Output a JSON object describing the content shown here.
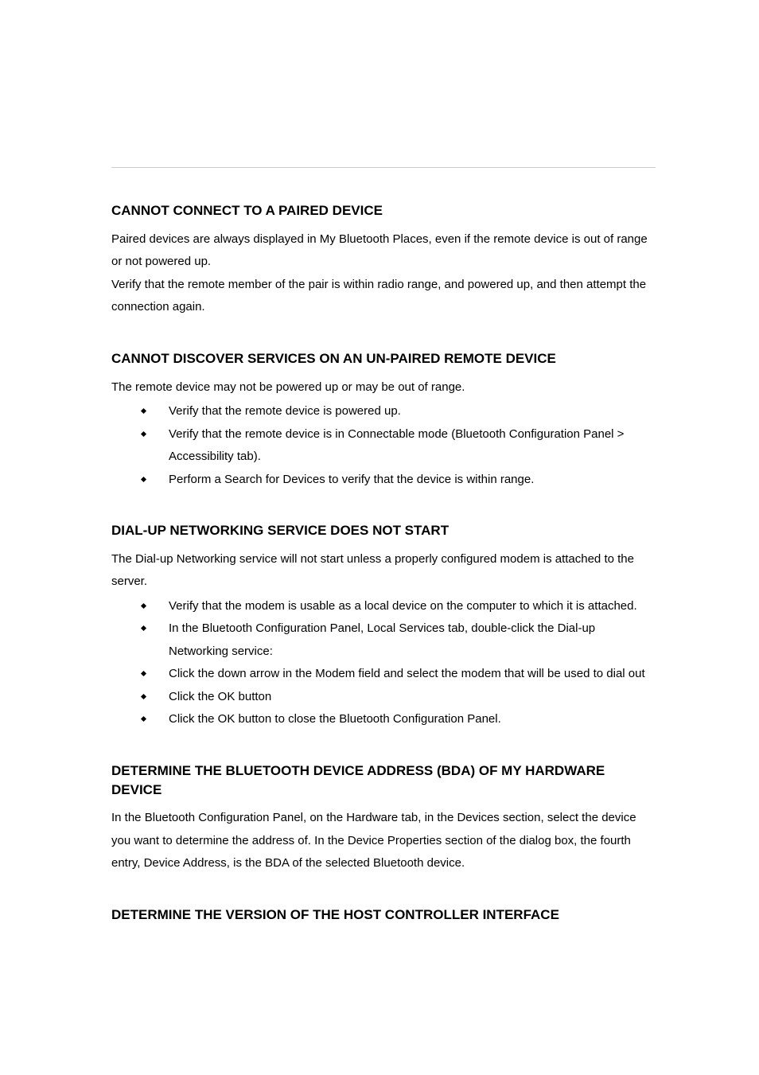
{
  "sections": [
    {
      "heading": "CANNOT CONNECT TO A PAIRED DEVICE",
      "paras": [
        "Paired devices are always displayed in My Bluetooth Places, even if the remote device is out of range or not powered up.",
        "Verify that the remote member of the pair is within radio range, and powered up, and then attempt the connection again."
      ],
      "bullets": []
    },
    {
      "heading": "CANNOT DISCOVER SERVICES ON AN UN-PAIRED REMOTE DEVICE",
      "paras": [
        "The remote device may not be powered up or may be out of range."
      ],
      "bullets": [
        "Verify that the remote device is powered up.",
        "Verify that the remote device is in Connectable mode (Bluetooth Configuration Panel > Accessibility tab).",
        "Perform a Search for Devices to verify that the device is within range."
      ]
    },
    {
      "heading": "DIAL-UP NETWORKING SERVICE DOES NOT START",
      "paras": [
        "The Dial-up Networking service will not start unless a properly configured modem is attached to the server."
      ],
      "bullets": [
        "Verify that the modem is usable as a local device on the computer to which it is attached.",
        "In the Bluetooth Configuration Panel, Local Services tab, double-click the Dial-up Networking service:",
        "Click the down arrow in the Modem field and select the modem that will be used to dial out",
        "Click the OK button",
        "Click the OK button to close the Bluetooth Configuration Panel."
      ]
    },
    {
      "heading": "DETERMINE THE BLUETOOTH DEVICE ADDRESS (BDA) OF MY HARDWARE DEVICE",
      "paras": [
        "In the Bluetooth Configuration Panel, on the Hardware tab, in the Devices section, select the device you want to determine the address of. In the Device Properties section of the dialog box, the fourth entry, Device Address, is the BDA of the selected Bluetooth device."
      ],
      "bullets": []
    },
    {
      "heading": "DETERMINE THE VERSION OF THE HOST CONTROLLER INTERFACE",
      "paras": [],
      "bullets": []
    }
  ]
}
